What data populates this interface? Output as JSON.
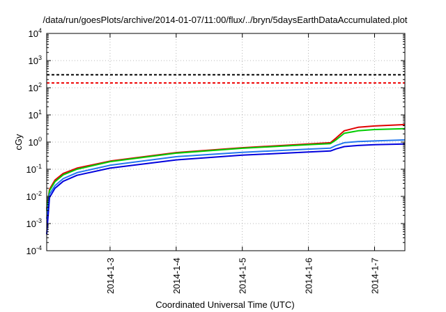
{
  "chart_data": {
    "type": "line",
    "title": "/data/run/goesPlots/archive/2014-01-07/11:00/flux/../bryn/5daysEarthDataAccumulated.plot",
    "xlabel": "Coordinated Universal Time (UTC)",
    "ylabel": "cGy",
    "y_scale": "log",
    "ylim": [
      0.0001,
      10000
    ],
    "y_ticks": [
      {
        "base": "10",
        "exp": "-4",
        "value": 0.0001
      },
      {
        "base": "10",
        "exp": "-3",
        "value": 0.001
      },
      {
        "base": "10",
        "exp": "-2",
        "value": 0.01
      },
      {
        "base": "10",
        "exp": "-1",
        "value": 0.1
      },
      {
        "base": "10",
        "exp": "0",
        "value": 1
      },
      {
        "base": "10",
        "exp": "1",
        "value": 10
      },
      {
        "base": "10",
        "exp": "2",
        "value": 100
      },
      {
        "base": "10",
        "exp": "3",
        "value": 1000
      },
      {
        "base": "10",
        "exp": "4",
        "value": 10000
      }
    ],
    "xlim": [
      "2014-01-02T01:00",
      "2014-01-07T11:00"
    ],
    "x_ticks": [
      {
        "label": "2014-1-3",
        "value": "2014-01-03T00:00"
      },
      {
        "label": "2014-1-4",
        "value": "2014-01-04T00:00"
      },
      {
        "label": "2014-1-5",
        "value": "2014-01-05T00:00"
      },
      {
        "label": "2014-1-6",
        "value": "2014-01-06T00:00"
      },
      {
        "label": "2014-1-7",
        "value": "2014-01-07T00:00"
      }
    ],
    "grid": true,
    "series": [
      {
        "color": "#e00000",
        "x": [
          "2014-01-02T01:00",
          "2014-01-02T02:00",
          "2014-01-02T04:00",
          "2014-01-02T07:00",
          "2014-01-02T12:00",
          "2014-01-03T00:00",
          "2014-01-04T00:00",
          "2014-01-05T00:00",
          "2014-01-06T00:00",
          "2014-01-06T08:00",
          "2014-01-06T10:00",
          "2014-01-06T13:00",
          "2014-01-06T18:00",
          "2014-01-07T00:00",
          "2014-01-07T11:00"
        ],
        "values": [
          0.0035,
          0.018,
          0.04,
          0.07,
          0.11,
          0.2,
          0.41,
          0.62,
          0.85,
          0.95,
          1.4,
          2.6,
          3.5,
          3.9,
          4.4
        ]
      },
      {
        "color": "#00cc00",
        "x": [
          "2014-01-02T01:00",
          "2014-01-02T02:00",
          "2014-01-02T04:00",
          "2014-01-02T07:00",
          "2014-01-02T12:00",
          "2014-01-03T00:00",
          "2014-01-04T00:00",
          "2014-01-05T00:00",
          "2014-01-06T00:00",
          "2014-01-06T08:00",
          "2014-01-06T10:00",
          "2014-01-06T13:00",
          "2014-01-06T18:00",
          "2014-01-07T00:00",
          "2014-01-07T11:00"
        ],
        "values": [
          0.003,
          0.016,
          0.035,
          0.062,
          0.1,
          0.19,
          0.39,
          0.59,
          0.8,
          0.88,
          1.2,
          2.1,
          2.6,
          2.9,
          3.1
        ]
      },
      {
        "color": "#2277ee",
        "x": [
          "2014-01-02T01:00",
          "2014-01-02T02:00",
          "2014-01-02T04:00",
          "2014-01-02T07:00",
          "2014-01-02T12:00",
          "2014-01-03T00:00",
          "2014-01-04T00:00",
          "2014-01-05T00:00",
          "2014-01-06T00:00",
          "2014-01-06T08:00",
          "2014-01-06T10:00",
          "2014-01-06T13:00",
          "2014-01-06T18:00",
          "2014-01-07T00:00",
          "2014-01-07T11:00"
        ],
        "values": [
          0.0015,
          0.012,
          0.025,
          0.045,
          0.075,
          0.14,
          0.29,
          0.42,
          0.55,
          0.6,
          0.75,
          0.95,
          1.05,
          1.1,
          1.2
        ]
      },
      {
        "color": "#0000dd",
        "x": [
          "2014-01-02T01:00",
          "2014-01-02T02:00",
          "2014-01-02T04:00",
          "2014-01-02T07:00",
          "2014-01-02T12:00",
          "2014-01-03T00:00",
          "2014-01-04T00:00",
          "2014-01-05T00:00",
          "2014-01-06T00:00",
          "2014-01-06T08:00",
          "2014-01-06T10:00",
          "2014-01-06T13:00",
          "2014-01-06T18:00",
          "2014-01-07T00:00",
          "2014-01-07T11:00"
        ],
        "values": [
          0.0004,
          0.009,
          0.02,
          0.036,
          0.06,
          0.11,
          0.22,
          0.33,
          0.43,
          0.47,
          0.56,
          0.68,
          0.75,
          0.8,
          0.85
        ]
      }
    ],
    "reference_lines": [
      {
        "color": "#000000",
        "style": "dashed",
        "value": 300
      },
      {
        "color": "#ee0000",
        "style": "dashed",
        "value": 150
      }
    ]
  }
}
